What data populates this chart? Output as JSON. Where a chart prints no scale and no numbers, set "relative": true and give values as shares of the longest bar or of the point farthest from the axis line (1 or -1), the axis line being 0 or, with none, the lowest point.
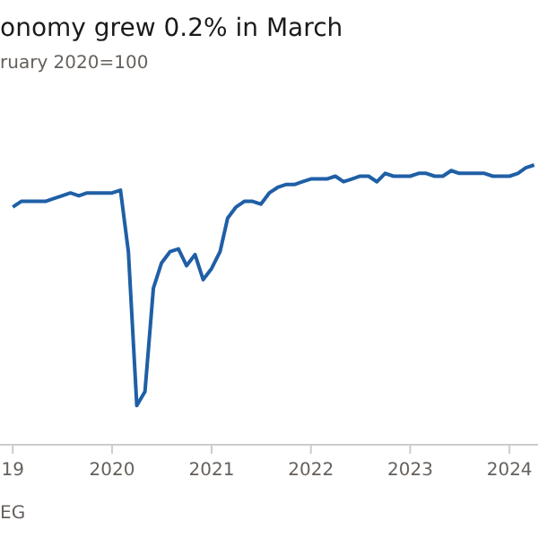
{
  "chart_data": {
    "type": "line",
    "title": "onomy grew 0.2% in March",
    "subtitle": "ruary 2020=100",
    "annotations": [
      "EG"
    ],
    "relative": true,
    "x": [
      "2019-01",
      "2019-02",
      "2019-03",
      "2019-04",
      "2019-05",
      "2019-06",
      "2019-07",
      "2019-08",
      "2019-09",
      "2019-10",
      "2019-11",
      "2019-12",
      "2020-01",
      "2020-02",
      "2020-03",
      "2020-04",
      "2020-05",
      "2020-06",
      "2020-07",
      "2020-08",
      "2020-09",
      "2020-10",
      "2020-11",
      "2020-12",
      "2021-01",
      "2021-02",
      "2021-03",
      "2021-04",
      "2021-05",
      "2021-06",
      "2021-07",
      "2021-08",
      "2021-09",
      "2021-10",
      "2021-11",
      "2021-12",
      "2022-01",
      "2022-02",
      "2022-03",
      "2022-04",
      "2022-05",
      "2022-06",
      "2022-07",
      "2022-08",
      "2022-09",
      "2022-10",
      "2022-11",
      "2022-12",
      "2023-01",
      "2023-02",
      "2023-03",
      "2023-04",
      "2023-05",
      "2023-06",
      "2023-07",
      "2023-08",
      "2023-09",
      "2023-10",
      "2023-11",
      "2023-12",
      "2024-01",
      "2024-02",
      "2024-03",
      "2024-04"
    ],
    "series": [
      {
        "color": "#1f5fa6",
        "values": [
          0.85,
          0.87,
          0.87,
          0.87,
          0.87,
          0.88,
          0.89,
          0.9,
          0.89,
          0.9,
          0.9,
          0.9,
          0.9,
          0.91,
          0.69,
          0.14,
          0.19,
          0.56,
          0.65,
          0.69,
          0.7,
          0.64,
          0.68,
          0.59,
          0.63,
          0.69,
          0.81,
          0.85,
          0.87,
          0.87,
          0.86,
          0.9,
          0.92,
          0.93,
          0.93,
          0.94,
          0.95,
          0.95,
          0.95,
          0.96,
          0.94,
          0.95,
          0.96,
          0.96,
          0.94,
          0.97,
          0.96,
          0.96,
          0.96,
          0.97,
          0.97,
          0.96,
          0.96,
          0.98,
          0.97,
          0.97,
          0.97,
          0.97,
          0.96,
          0.96,
          0.96,
          0.97,
          0.99,
          1
        ]
      }
    ],
    "xlim": [
      "2018-11-15",
      "2024-04-15"
    ],
    "xticks": [
      {
        "value": "2019",
        "label": "19"
      },
      "2020",
      "2021",
      "2022",
      "2023",
      "2024"
    ],
    "line_style": "solid",
    "marker": "none"
  }
}
